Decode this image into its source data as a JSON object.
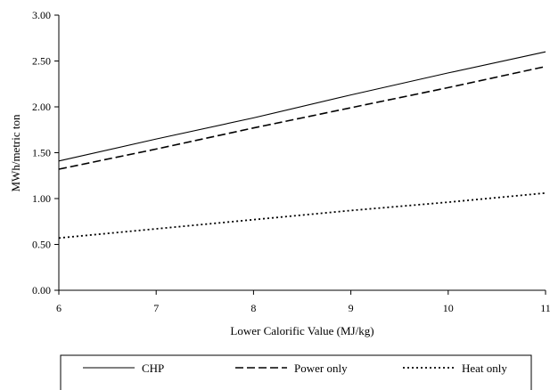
{
  "chart_data": {
    "type": "line",
    "title": "",
    "xlabel": "Lower Calorific Value (MJ/kg)",
    "ylabel": "MWh/metric ton",
    "xlim": [
      6,
      11
    ],
    "ylim": [
      0,
      3
    ],
    "x_ticks": [
      "6",
      "7",
      "8",
      "9",
      "10",
      "11"
    ],
    "y_ticks": [
      "0.00",
      "0.50",
      "1.00",
      "1.50",
      "2.00",
      "2.50",
      "3.00"
    ],
    "grid": false,
    "legend_position": "bottom",
    "series": [
      {
        "name": "CHP",
        "style": "solid",
        "x": [
          6,
          7,
          8,
          9,
          10,
          11
        ],
        "y": [
          1.41,
          1.65,
          1.88,
          2.13,
          2.37,
          2.6
        ]
      },
      {
        "name": "Power only",
        "style": "dashed",
        "x": [
          6,
          7,
          8,
          9,
          10,
          11
        ],
        "y": [
          1.32,
          1.54,
          1.77,
          1.99,
          2.21,
          2.44
        ]
      },
      {
        "name": "Heat only",
        "style": "dotted",
        "x": [
          6,
          7,
          8,
          9,
          10,
          11
        ],
        "y": [
          0.57,
          0.67,
          0.77,
          0.87,
          0.96,
          1.06
        ]
      }
    ]
  }
}
